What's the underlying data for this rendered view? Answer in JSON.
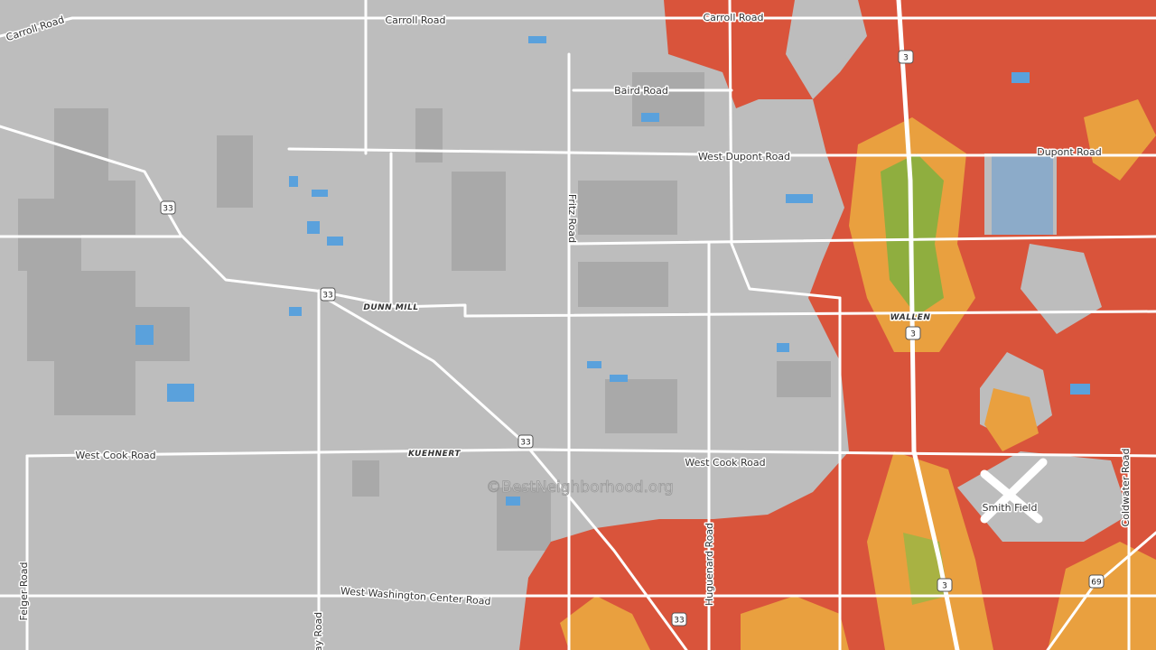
{
  "map": {
    "road_labels": [
      "Carroll Road",
      "Carroll Road",
      "Carroll Road",
      "Baird Road",
      "West Dupont Road",
      "Dupont Road",
      "Fritz Road",
      "DUNN MILL",
      "WALLEN",
      "West Cook Road",
      "West Cook Road",
      "KUEHNERT",
      "West Washington Center Road",
      "Felger Road",
      "Huguenard Road",
      "Coldwater Road",
      "ay Road"
    ],
    "shields": [
      "33",
      "33",
      "33",
      "33",
      "3",
      "3",
      "3",
      "69"
    ],
    "place_labels": [
      "Smith Field"
    ],
    "watermark": "©BestNeighborhood.org"
  }
}
